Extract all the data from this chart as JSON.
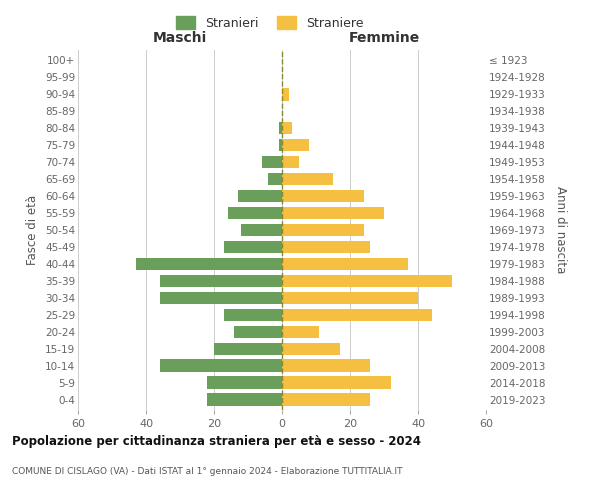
{
  "age_groups": [
    "0-4",
    "5-9",
    "10-14",
    "15-19",
    "20-24",
    "25-29",
    "30-34",
    "35-39",
    "40-44",
    "45-49",
    "50-54",
    "55-59",
    "60-64",
    "65-69",
    "70-74",
    "75-79",
    "80-84",
    "85-89",
    "90-94",
    "95-99",
    "100+"
  ],
  "birth_years": [
    "2019-2023",
    "2014-2018",
    "2009-2013",
    "2004-2008",
    "1999-2003",
    "1994-1998",
    "1989-1993",
    "1984-1988",
    "1979-1983",
    "1974-1978",
    "1969-1973",
    "1964-1968",
    "1959-1963",
    "1954-1958",
    "1949-1953",
    "1944-1948",
    "1939-1943",
    "1934-1938",
    "1929-1933",
    "1924-1928",
    "≤ 1923"
  ],
  "maschi": [
    22,
    22,
    36,
    20,
    14,
    17,
    36,
    36,
    43,
    17,
    12,
    16,
    13,
    4,
    6,
    1,
    1,
    0,
    0,
    0,
    0
  ],
  "femmine": [
    26,
    32,
    26,
    17,
    11,
    44,
    40,
    50,
    37,
    26,
    24,
    30,
    24,
    15,
    5,
    8,
    3,
    0,
    2,
    0,
    0
  ],
  "maschi_color": "#6a9e5b",
  "femmine_color": "#f5bf42",
  "background_color": "#ffffff",
  "grid_color": "#cccccc",
  "title": "Popolazione per cittadinanza straniera per età e sesso - 2024",
  "subtitle": "COMUNE DI CISLAGO (VA) - Dati ISTAT al 1° gennaio 2024 - Elaborazione TUTTITALIA.IT",
  "xlabel_left": "Maschi",
  "xlabel_right": "Femmine",
  "ylabel_left": "Fasce di età",
  "ylabel_right": "Anni di nascita",
  "legend_maschi": "Stranieri",
  "legend_femmine": "Straniere",
  "xlim": 60,
  "bar_height": 0.75
}
